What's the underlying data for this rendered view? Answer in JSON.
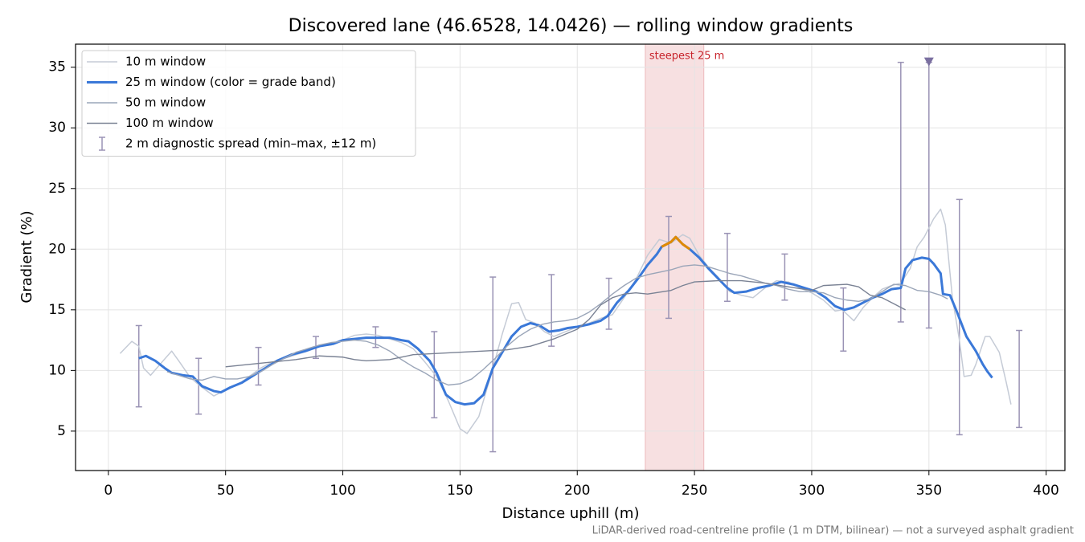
{
  "chart_data": {
    "type": "line",
    "title": "Discovered lane (46.6528, 14.0426) — rolling window gradients",
    "xlabel": "Distance uphill (m)",
    "ylabel": "Gradient (%)",
    "note": "LiDAR-derived road-centreline profile (1 m DTM, bilinear) — not a surveyed asphalt gradient",
    "xlim": [
      -14,
      408
    ],
    "ylim": [
      1.75,
      36.9
    ],
    "xticks": [
      0,
      50,
      100,
      150,
      200,
      250,
      300,
      350,
      400
    ],
    "yticks": [
      5,
      10,
      15,
      20,
      25,
      30,
      35
    ],
    "grid": true,
    "legend": "upper left",
    "span": {
      "x": [
        229,
        254
      ],
      "label": "steepest 25 m",
      "color": "#c8242c"
    },
    "marker": {
      "x": 350,
      "y": 35.4,
      "color": "#7a6fa0"
    },
    "series": [
      {
        "name": "10 m window",
        "color": "#c5cbd6",
        "x": [
          5,
          10,
          13,
          15,
          18,
          22,
          27,
          30,
          35,
          40,
          45,
          50,
          55,
          60,
          65,
          70,
          75,
          80,
          85,
          90,
          95,
          100,
          105,
          110,
          115,
          120,
          125,
          130,
          135,
          140,
          145,
          150,
          153,
          158,
          163,
          168,
          172,
          175,
          178,
          182,
          186,
          190,
          195,
          200,
          205,
          210,
          215,
          220,
          225,
          230,
          235,
          240,
          245,
          248,
          252,
          256,
          260,
          265,
          270,
          275,
          280,
          285,
          290,
          295,
          300,
          305,
          310,
          313,
          318,
          322,
          326,
          330,
          334,
          338,
          342,
          345,
          348,
          352,
          355,
          357,
          360,
          363,
          365,
          368,
          370,
          374,
          376,
          380,
          383,
          385
        ],
        "values": [
          11.4,
          12.4,
          12.0,
          10.2,
          9.6,
          10.5,
          11.6,
          10.8,
          9.4,
          8.6,
          7.9,
          8.4,
          8.8,
          9.5,
          10.2,
          10.7,
          11.0,
          11.3,
          11.6,
          12.0,
          12.1,
          12.5,
          12.9,
          13.0,
          12.9,
          12.6,
          12.3,
          11.8,
          10.7,
          9.5,
          7.5,
          5.2,
          4.8,
          6.2,
          9.5,
          13.0,
          15.5,
          15.6,
          14.2,
          13.9,
          13.2,
          12.8,
          13.2,
          13.6,
          13.9,
          14.3,
          14.6,
          16.0,
          17.5,
          19.5,
          20.8,
          20.5,
          21.2,
          20.9,
          19.5,
          18.5,
          17.7,
          16.5,
          16.2,
          16.0,
          16.8,
          17.4,
          17.3,
          16.8,
          16.4,
          15.8,
          14.9,
          15.0,
          14.1,
          15.2,
          16.0,
          16.7,
          17.0,
          17.2,
          18.4,
          20.2,
          21.0,
          22.5,
          23.3,
          22.0,
          16.0,
          12.5,
          9.5,
          9.6,
          10.5,
          12.8,
          12.8,
          11.5,
          9.0,
          7.2
        ]
      },
      {
        "name": "25 m window (color = grade band)",
        "color": "#3a78d8",
        "band_threshold": 20,
        "band_color": "#e08a00",
        "x": [
          13,
          16,
          20,
          24,
          27,
          32,
          36,
          40,
          45,
          48,
          52,
          57,
          62,
          67,
          72,
          78,
          84,
          90,
          96,
          100,
          105,
          110,
          115,
          120,
          125,
          128,
          132,
          137,
          140,
          144,
          148,
          152,
          156,
          160,
          164,
          168,
          172,
          176,
          180,
          184,
          188,
          192,
          196,
          200,
          205,
          210,
          213,
          217,
          222,
          226,
          230,
          234,
          236,
          240,
          242,
          245,
          248,
          252,
          256,
          260,
          264,
          267,
          272,
          277,
          282,
          287,
          292,
          297,
          302,
          306,
          310,
          314,
          318,
          322,
          326,
          330,
          334,
          338,
          340,
          343,
          347,
          350,
          352,
          355,
          356,
          359,
          362,
          366,
          370,
          373,
          375,
          377
        ],
        "values": [
          11.0,
          11.2,
          10.8,
          10.2,
          9.8,
          9.6,
          9.5,
          8.7,
          8.3,
          8.2,
          8.6,
          9.0,
          9.6,
          10.2,
          10.8,
          11.3,
          11.6,
          12.0,
          12.2,
          12.5,
          12.6,
          12.7,
          12.7,
          12.7,
          12.5,
          12.4,
          11.8,
          10.8,
          9.8,
          8.0,
          7.4,
          7.2,
          7.3,
          8.0,
          10.2,
          11.5,
          12.8,
          13.6,
          13.9,
          13.7,
          13.2,
          13.3,
          13.5,
          13.6,
          13.8,
          14.1,
          14.5,
          15.6,
          16.6,
          17.6,
          18.7,
          19.6,
          20.2,
          20.6,
          21.0,
          20.4,
          20.0,
          19.3,
          18.4,
          17.6,
          16.8,
          16.4,
          16.5,
          16.8,
          17.0,
          17.3,
          17.1,
          16.8,
          16.5,
          16.0,
          15.3,
          15.0,
          15.2,
          15.6,
          16.0,
          16.3,
          16.7,
          16.8,
          18.4,
          19.1,
          19.3,
          19.2,
          18.8,
          18.0,
          16.3,
          16.2,
          14.8,
          12.8,
          11.6,
          10.5,
          9.9,
          9.4
        ]
      },
      {
        "name": "50 m window",
        "color": "#9aa5b8",
        "x": [
          25,
          30,
          35,
          40,
          45,
          50,
          55,
          60,
          65,
          70,
          75,
          80,
          85,
          90,
          95,
          100,
          105,
          110,
          115,
          120,
          125,
          130,
          135,
          140,
          145,
          150,
          155,
          160,
          165,
          170,
          175,
          180,
          185,
          190,
          195,
          200,
          205,
          210,
          215,
          220,
          225,
          230,
          235,
          240,
          245,
          250,
          255,
          260,
          265,
          270,
          275,
          280,
          285,
          290,
          295,
          300,
          305,
          310,
          315,
          320,
          325,
          330,
          335,
          340,
          345,
          350,
          355,
          358
        ],
        "values": [
          9.9,
          9.6,
          9.3,
          9.2,
          9.5,
          9.3,
          9.3,
          9.5,
          9.9,
          10.5,
          11.0,
          11.5,
          11.8,
          12.1,
          12.3,
          12.4,
          12.5,
          12.4,
          12.1,
          11.6,
          10.9,
          10.3,
          9.8,
          9.2,
          8.8,
          8.9,
          9.3,
          10.1,
          11.0,
          12.0,
          12.8,
          13.4,
          13.8,
          14.0,
          14.1,
          14.3,
          14.8,
          15.5,
          16.3,
          17.0,
          17.6,
          17.9,
          18.1,
          18.3,
          18.6,
          18.7,
          18.6,
          18.3,
          18.0,
          17.8,
          17.5,
          17.2,
          17.0,
          16.7,
          16.5,
          16.5,
          16.4,
          16.0,
          15.8,
          15.7,
          15.9,
          16.5,
          17.1,
          17.0,
          16.6,
          16.5,
          16.2,
          15.9
        ]
      },
      {
        "name": "100 m window",
        "color": "#7a8294",
        "x": [
          50,
          55,
          60,
          70,
          80,
          90,
          100,
          105,
          110,
          120,
          125,
          130,
          140,
          150,
          160,
          170,
          180,
          190,
          200,
          205,
          210,
          215,
          220,
          225,
          230,
          240,
          245,
          250,
          260,
          270,
          280,
          290,
          300,
          305,
          315,
          320,
          325,
          330,
          335,
          340
        ],
        "values": [
          10.3,
          10.4,
          10.5,
          10.7,
          10.9,
          11.2,
          11.1,
          10.9,
          10.8,
          10.9,
          11.1,
          11.3,
          11.4,
          11.5,
          11.6,
          11.7,
          12.0,
          12.6,
          13.4,
          14.2,
          15.4,
          16.0,
          16.3,
          16.4,
          16.3,
          16.6,
          17.0,
          17.3,
          17.4,
          17.4,
          17.2,
          16.9,
          16.6,
          17.0,
          17.1,
          16.9,
          16.2,
          16.0,
          15.5,
          15.0
        ]
      }
    ],
    "errorbars": {
      "name": "2 m diagnostic spread (min–max, ±12 m)",
      "color": "#9a93b5",
      "x": [
        13,
        38.5,
        64,
        88.5,
        114,
        139,
        164,
        189,
        213.5,
        239,
        264,
        288.5,
        313.5,
        338,
        350,
        363,
        388.5
      ],
      "low": [
        7.0,
        6.4,
        8.8,
        11.0,
        11.9,
        6.1,
        3.3,
        12.0,
        13.4,
        14.3,
        15.7,
        15.8,
        11.6,
        14.0,
        13.5,
        4.7,
        5.3
      ],
      "high": [
        13.7,
        11.0,
        11.9,
        12.8,
        13.6,
        13.2,
        17.7,
        17.9,
        17.6,
        22.7,
        21.3,
        19.6,
        16.8,
        35.4,
        35.4,
        24.1,
        13.3
      ]
    }
  }
}
